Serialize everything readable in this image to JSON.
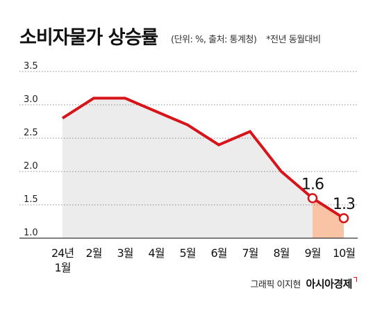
{
  "header": {
    "title": "소비자물가 상승률",
    "unit_note": "(단위: %, 출처: 통계청)",
    "basis_note": "*전년 동월대비"
  },
  "footer": {
    "credit": "그래픽 이지현",
    "brand": "아시아경제"
  },
  "colors": {
    "line": "#d7141a",
    "area_fill": "#ececec",
    "highlight_fill": "#f9c3a6",
    "grid": "#888888"
  },
  "chart_data": {
    "type": "line",
    "categories": [
      "24년\n1월",
      "2월",
      "3월",
      "4월",
      "5월",
      "6월",
      "7월",
      "8월",
      "9월",
      "10월"
    ],
    "values": [
      2.8,
      3.1,
      3.1,
      2.9,
      2.7,
      2.4,
      2.6,
      2.0,
      1.6,
      1.3
    ],
    "ylim": [
      1.0,
      3.5
    ],
    "yticks": [
      "1.0",
      "1.5",
      "2.0",
      "2.5",
      "3.0",
      "3.5"
    ],
    "grid": true,
    "area_under_line": true,
    "highlighted_range": [
      "9월",
      "10월"
    ],
    "annotations": [
      {
        "category": "9월",
        "text": "1.6"
      },
      {
        "category": "10월",
        "text": "1.3"
      }
    ],
    "title": "소비자물가 상승률"
  }
}
